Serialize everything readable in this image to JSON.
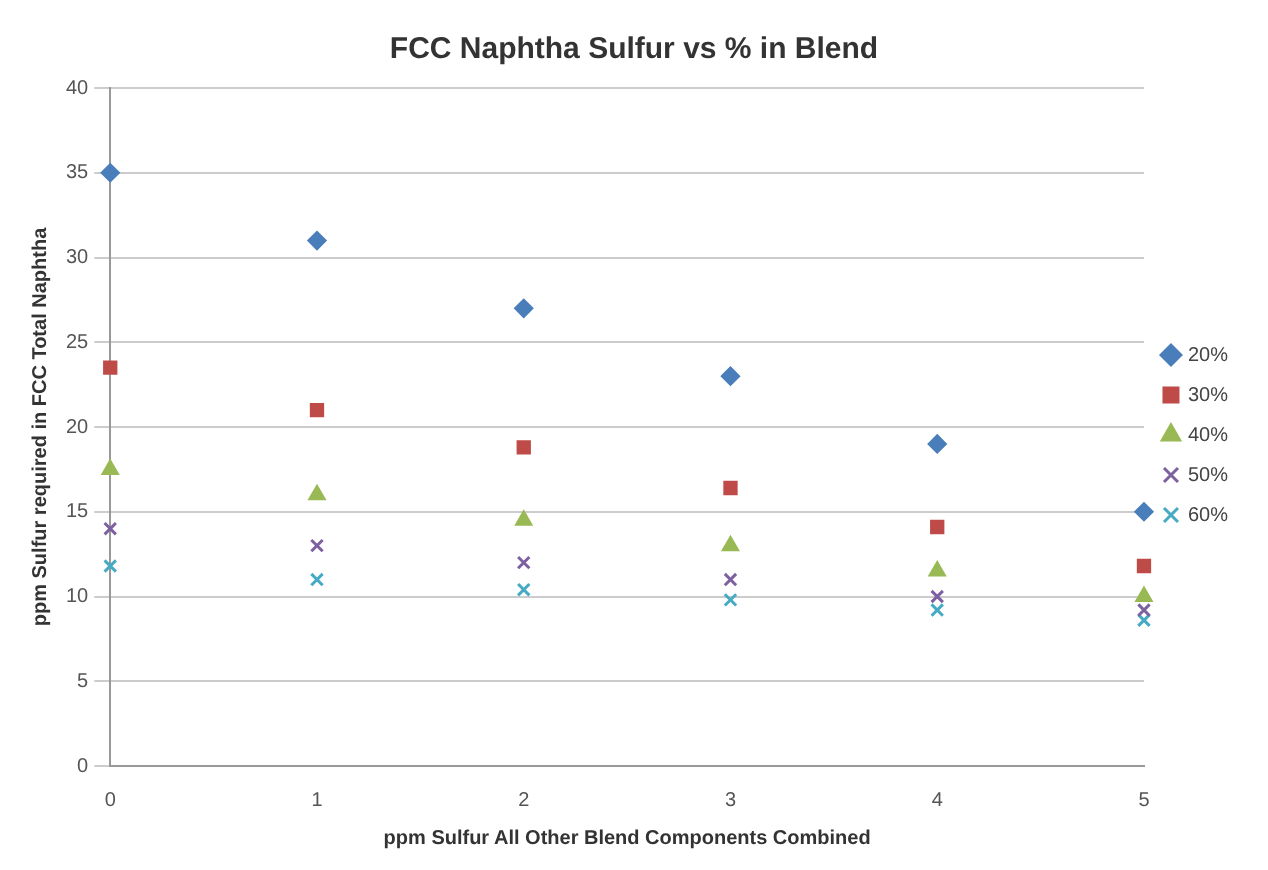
{
  "chart_data": {
    "type": "scatter",
    "title": "FCC Naphtha Sulfur vs % in Blend",
    "xlabel": "ppm Sulfur All Other Blend Components Combined",
    "ylabel": "ppm Sulfur required in FCC Total Naphtha",
    "x": [
      0,
      1,
      2,
      3,
      4,
      5
    ],
    "series": [
      {
        "name": "20%",
        "color": "#4a7ebb",
        "marker": "diamond",
        "values": [
          35,
          31,
          27,
          23,
          19,
          15
        ]
      },
      {
        "name": "30%",
        "color": "#be4b48",
        "marker": "square",
        "values": [
          23.5,
          21,
          18.8,
          16.4,
          14.1,
          11.8
        ]
      },
      {
        "name": "40%",
        "color": "#98b954",
        "marker": "triangle",
        "values": [
          17.5,
          16,
          14.5,
          13,
          11.5,
          10
        ]
      },
      {
        "name": "50%",
        "color": "#7d60a0",
        "marker": "cross",
        "values": [
          14,
          13,
          12,
          11,
          10,
          9.2
        ]
      },
      {
        "name": "60%",
        "color": "#46aac5",
        "marker": "cross",
        "values": [
          11.8,
          11,
          10.4,
          9.8,
          9.2,
          8.6
        ]
      }
    ],
    "xlim": [
      0,
      5
    ],
    "xticks": [
      0,
      1,
      2,
      3,
      4,
      5
    ],
    "ylim": [
      0,
      40
    ],
    "yticks": [
      0,
      5,
      10,
      15,
      20,
      25,
      30,
      35,
      40
    ],
    "grid": "y",
    "legend": "right"
  }
}
